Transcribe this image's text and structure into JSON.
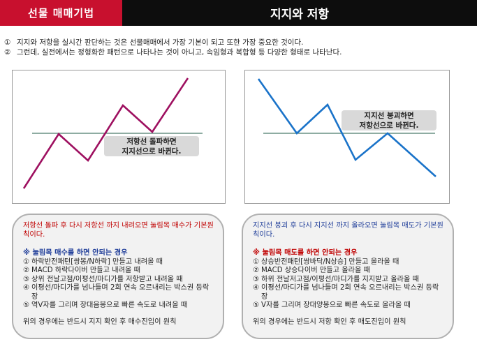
{
  "header": {
    "left_title": "선물 매매기법",
    "right_title": "지지와 저항"
  },
  "intro": [
    {
      "num": "①",
      "text": "지지와 저항을 실시간 판단하는 것은 선물매매에서 가장 기본이 되고 또한 가장 중요한 것이다."
    },
    {
      "num": "②",
      "text": "그런데, 실전에서는 정형화한 패턴으로 나타나는 것이 아니고, 속임형과 복합형 등 다양한 형태로 나타난다."
    }
  ],
  "left_chart": {
    "callout_line1": "저항선 돌파하면",
    "callout_line2": "지지선으로 바뀐다.",
    "line_color": "#9e1060",
    "level_color": "#4a7a6a"
  },
  "right_chart": {
    "callout_line1": "지지선 붕괴하면",
    "callout_line2": "저항선으로 바뀐다.",
    "line_color": "#1a73c9",
    "level_color": "#4a7a6a"
  },
  "left_box": {
    "lead": "저항선 돌파 후 다시 저항선 까지 내려오면 눌림목 매수가 기본원칙이다.",
    "warning": "※ 눌림목 매수를 하면 안되는 경우",
    "items": [
      {
        "n": "①",
        "text": "하락반전패턴[쌍봉/N하락] 만들고 내려올 때"
      },
      {
        "n": "②",
        "text": "MACD 하락다이버 만들고 내려올 때"
      },
      {
        "n": "③",
        "text": "상위 전날고점/이평선/마디가를 저항받고 내려올 때"
      },
      {
        "n": "④",
        "text": "이평선/마디가를 넘나들며 2회 연속 오르내리는 박스권 등락장"
      },
      {
        "n": "⑤",
        "text": "역V자를 그리며 장대음봉으로 빠른 속도로 내려올 때"
      }
    ],
    "footer": "위의 경우에는 반드시 지지 확인 후 매수진입이 원칙"
  },
  "right_box": {
    "lead": "지지선 붕괴 후 다시 지지선 까지 올라오면 눌림목 매도가 기본원칙이다.",
    "warning": "※ 눌림목 매도를 하면 안되는 경우",
    "items": [
      {
        "n": "①",
        "text": "상승반전패턴[쌍바닥/N상승] 만들고 올라올 때"
      },
      {
        "n": "②",
        "text": "MACD 상승다이버 만들고 올라올 때"
      },
      {
        "n": "③",
        "text": "하위 전날저고점/이평선/마디가를 지지받고 올라올 때"
      },
      {
        "n": "④",
        "text": "이평선/마디가를 넘나들며 2회 연속 오르내리는 박스권 등락장"
      },
      {
        "n": "⑤",
        "text": "V자를 그리며 장대양봉으로 빠른 속도로 올라올 때"
      }
    ],
    "footer": "위의 경우에는 반드시 저항 확인 후 매도진입이 원칙"
  }
}
